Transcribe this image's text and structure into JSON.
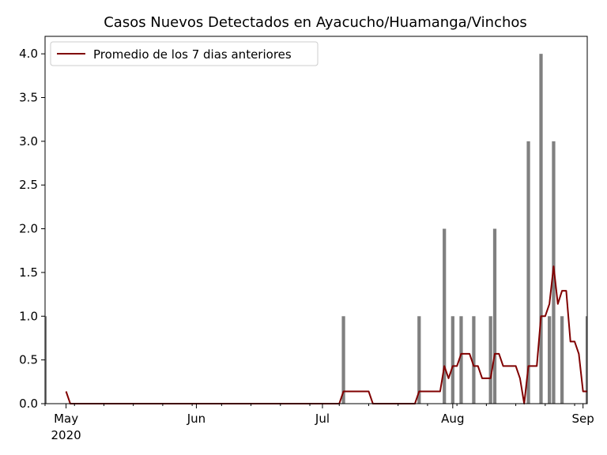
{
  "chart_data": {
    "type": "bar",
    "title": "Casos Nuevos Detectados en Ayacucho/Huamanga/Vinchos",
    "xlabel": "",
    "ylabel": "",
    "ylim": [
      0,
      4.2
    ],
    "xlim": [
      "2020-04-26",
      "2020-09-02"
    ],
    "y_ticks": [
      "0.0",
      "0.5",
      "1.0",
      "1.5",
      "2.0",
      "2.5",
      "3.0",
      "3.5",
      "4.0"
    ],
    "x_ticks": [
      {
        "date": "2020-05-01",
        "label": "May",
        "sublabel": "2020"
      },
      {
        "date": "2020-06-01",
        "label": "Jun",
        "sublabel": ""
      },
      {
        "date": "2020-07-01",
        "label": "Jul",
        "sublabel": ""
      },
      {
        "date": "2020-08-01",
        "label": "Aug",
        "sublabel": ""
      },
      {
        "date": "2020-09-01",
        "label": "Sep",
        "sublabel": ""
      }
    ],
    "bar_color": "#808080",
    "line_color": "#800000",
    "grid": false,
    "legend": {
      "position": "top-left"
    },
    "series": [
      {
        "kind": "bar",
        "points": [
          [
            "2020-04-26",
            1
          ],
          [
            "2020-07-06",
            1
          ],
          [
            "2020-07-24",
            1
          ],
          [
            "2020-07-30",
            2
          ],
          [
            "2020-08-01",
            1
          ],
          [
            "2020-08-03",
            1
          ],
          [
            "2020-08-06",
            1
          ],
          [
            "2020-08-10",
            1
          ],
          [
            "2020-08-11",
            2
          ],
          [
            "2020-08-19",
            3
          ],
          [
            "2020-08-22",
            4
          ],
          [
            "2020-08-24",
            1
          ],
          [
            "2020-08-25",
            3
          ],
          [
            "2020-08-27",
            1
          ],
          [
            "2020-09-02",
            1
          ]
        ]
      },
      {
        "kind": "line",
        "name": "Promedio de los 7 dias anteriores",
        "points": [
          [
            "2020-05-01",
            0.14
          ],
          [
            "2020-05-02",
            0.0
          ],
          [
            "2020-07-05",
            0.0
          ],
          [
            "2020-07-06",
            0.14
          ],
          [
            "2020-07-12",
            0.14
          ],
          [
            "2020-07-13",
            0.0
          ],
          [
            "2020-07-23",
            0.0
          ],
          [
            "2020-07-24",
            0.14
          ],
          [
            "2020-07-29",
            0.14
          ],
          [
            "2020-07-30",
            0.43
          ],
          [
            "2020-07-31",
            0.29
          ],
          [
            "2020-08-01",
            0.43
          ],
          [
            "2020-08-02",
            0.43
          ],
          [
            "2020-08-03",
            0.57
          ],
          [
            "2020-08-05",
            0.57
          ],
          [
            "2020-08-06",
            0.43
          ],
          [
            "2020-08-07",
            0.43
          ],
          [
            "2020-08-08",
            0.29
          ],
          [
            "2020-08-10",
            0.29
          ],
          [
            "2020-08-11",
            0.57
          ],
          [
            "2020-08-12",
            0.57
          ],
          [
            "2020-08-13",
            0.43
          ],
          [
            "2020-08-16",
            0.43
          ],
          [
            "2020-08-17",
            0.29
          ],
          [
            "2020-08-18",
            0.0
          ],
          [
            "2020-08-19",
            0.43
          ],
          [
            "2020-08-21",
            0.43
          ],
          [
            "2020-08-22",
            1.0
          ],
          [
            "2020-08-23",
            1.0
          ],
          [
            "2020-08-24",
            1.14
          ],
          [
            "2020-08-25",
            1.57
          ],
          [
            "2020-08-26",
            1.14
          ],
          [
            "2020-08-27",
            1.29
          ],
          [
            "2020-08-28",
            1.29
          ],
          [
            "2020-08-29",
            0.71
          ],
          [
            "2020-08-30",
            0.71
          ],
          [
            "2020-08-31",
            0.57
          ],
          [
            "2020-09-01",
            0.14
          ],
          [
            "2020-09-02",
            0.14
          ]
        ]
      }
    ]
  }
}
